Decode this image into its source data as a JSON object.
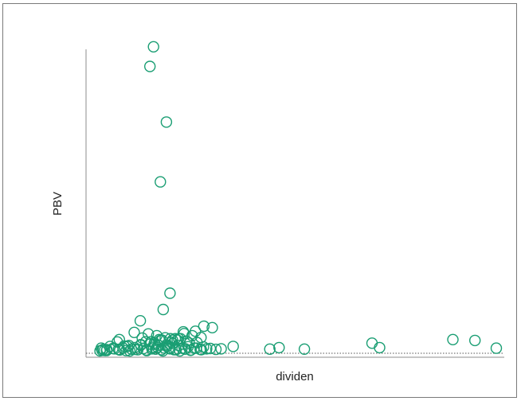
{
  "chart_data": {
    "type": "scatter",
    "title": "",
    "xlabel": "dividen",
    "ylabel": "PBV",
    "xlim": [
      0,
      100
    ],
    "ylim": [
      0,
      100
    ],
    "tick_labels_shown": false,
    "grid": false,
    "legend": "none",
    "marker": "open-circle",
    "colors": {
      "marker": "#1a9e73",
      "axis": "#8c8c8c",
      "zero_line": "#555555",
      "frame": "#7a7a7a"
    },
    "series": [
      {
        "x": [
          1.5,
          2.0,
          2.3,
          1.8,
          2.6,
          3.2,
          4.0,
          5.1,
          5.8,
          6.4,
          7.2,
          8.0,
          8.7,
          9.3,
          10.1,
          10.9,
          11.6,
          12.3,
          13.0,
          13.8,
          14.5,
          15.3,
          16.0,
          16.8,
          17.4,
          18.1,
          18.9,
          19.6,
          20.4,
          21.1,
          21.9,
          22.6,
          23.4,
          24.1,
          24.9,
          25.6,
          26.4,
          27.2,
          28.0,
          28.9,
          30.3,
          31.6,
          3.1,
          4.7,
          6.1,
          7.5,
          8.9,
          10.2,
          11.6,
          13.1,
          14.4,
          15.8,
          17.1,
          18.6,
          19.9,
          21.3,
          22.7,
          24.0,
          25.4,
          26.7,
          12.0,
          13.5,
          15.0,
          16.5,
          18.0,
          19.5,
          21.0,
          14.2,
          16.2,
          17.7,
          19.2,
          20.7,
          22.2,
          23.7,
          25.2,
          26.6,
          17.2,
          18.9,
          10.0,
          11.5,
          15.6,
          6.3,
          24.4,
          29.4,
          12.9,
          15.2,
          16.9,
          19.0,
          21.5,
          8.3,
          23.0,
          27.3,
          34.6,
          43.7,
          46.0,
          52.3,
          69.1,
          71.0,
          89.2,
          94.7,
          100.0,
          16.5,
          18.0,
          13.9,
          14.8,
          20.2,
          22.4
        ],
        "y": [
          0.8,
          1.0,
          1.3,
          1.7,
          0.9,
          1.2,
          2.3,
          1.5,
          3.8,
          1.1,
          1.8,
          0.9,
          2.6,
          1.4,
          1.9,
          1.2,
          2.9,
          1.6,
          1.1,
          3.1,
          2.0,
          1.4,
          2.7,
          1.2,
          1.8,
          2.3,
          1.5,
          3.3,
          1.2,
          2.6,
          1.7,
          1.4,
          2.2,
          1.1,
          1.7,
          3.6,
          1.3,
          2.1,
          1.5,
          1.6,
          1.3,
          1.5,
          0.9,
          1.6,
          1.3,
          2.4,
          0.8,
          1.3,
          2.7,
          0.9,
          1.5,
          2.0,
          0.8,
          1.7,
          1.2,
          0.8,
          1.5,
          1.0,
          1.7,
          1.2,
          5.1,
          6.5,
          3.5,
          4.3,
          2.8,
          4.4,
          4.9,
          3.9,
          4.6,
          5.2,
          3.7,
          4.4,
          7.2,
          3.4,
          7.4,
          5.3,
          14.7,
          20.2,
          7.0,
          10.9,
          5.9,
          4.6,
          5.9,
          8.6,
          3.9,
          3.0,
          4.4,
          4.9,
          4.9,
          2.3,
          4.1,
          9.1,
          2.3,
          1.4,
          1.9,
          1.4,
          3.4,
          1.9,
          4.6,
          4.3,
          1.7,
          57.6,
          77.7,
          96.4,
          103.0,
          4.9,
          6.6
        ]
      }
    ]
  }
}
